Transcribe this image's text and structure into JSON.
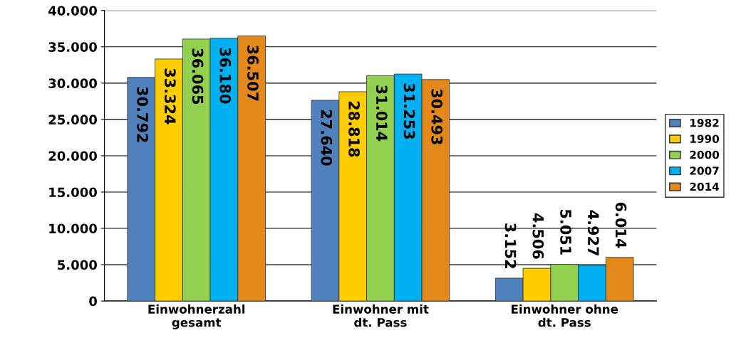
{
  "chart_data": {
    "type": "bar",
    "categories": [
      "Einwohnerzahl\ngesamt",
      "Einwohner mit\ndt. Pass",
      "Einwohner ohne\ndt. Pass"
    ],
    "series": [
      {
        "name": "1982",
        "color": "#4f81bd",
        "values": [
          30792,
          27640,
          3152
        ],
        "value_labels": [
          "30.792",
          "27.640",
          "3.152"
        ]
      },
      {
        "name": "1990",
        "color": "#ffcc00",
        "values": [
          33324,
          28818,
          4506
        ],
        "value_labels": [
          "33.324",
          "28.818",
          "4.506"
        ]
      },
      {
        "name": "2000",
        "color": "#92d050",
        "values": [
          36065,
          31014,
          5051
        ],
        "value_labels": [
          "36.065",
          "31.014",
          "5.051"
        ]
      },
      {
        "name": "2007",
        "color": "#00b0f0",
        "values": [
          36180,
          31253,
          4927
        ],
        "value_labels": [
          "36.180",
          "31.253",
          "4.927"
        ]
      },
      {
        "name": "2014",
        "color": "#e3891b",
        "values": [
          36507,
          30493,
          6014
        ],
        "value_labels": [
          "36.507",
          "30.493",
          "6.014"
        ]
      }
    ],
    "ylim": [
      0,
      40000
    ],
    "yticks": [
      {
        "value": 0,
        "label": "0"
      },
      {
        "value": 5000,
        "label": "5.000"
      },
      {
        "value": 10000,
        "label": "10.000"
      },
      {
        "value": 15000,
        "label": "15.000"
      },
      {
        "value": 20000,
        "label": "20.000"
      },
      {
        "value": 25000,
        "label": "25.000"
      },
      {
        "value": 30000,
        "label": "30.000"
      },
      {
        "value": 35000,
        "label": "35.000"
      },
      {
        "value": 40000,
        "label": "40.000"
      }
    ],
    "grid": "y",
    "legend": "right"
  }
}
